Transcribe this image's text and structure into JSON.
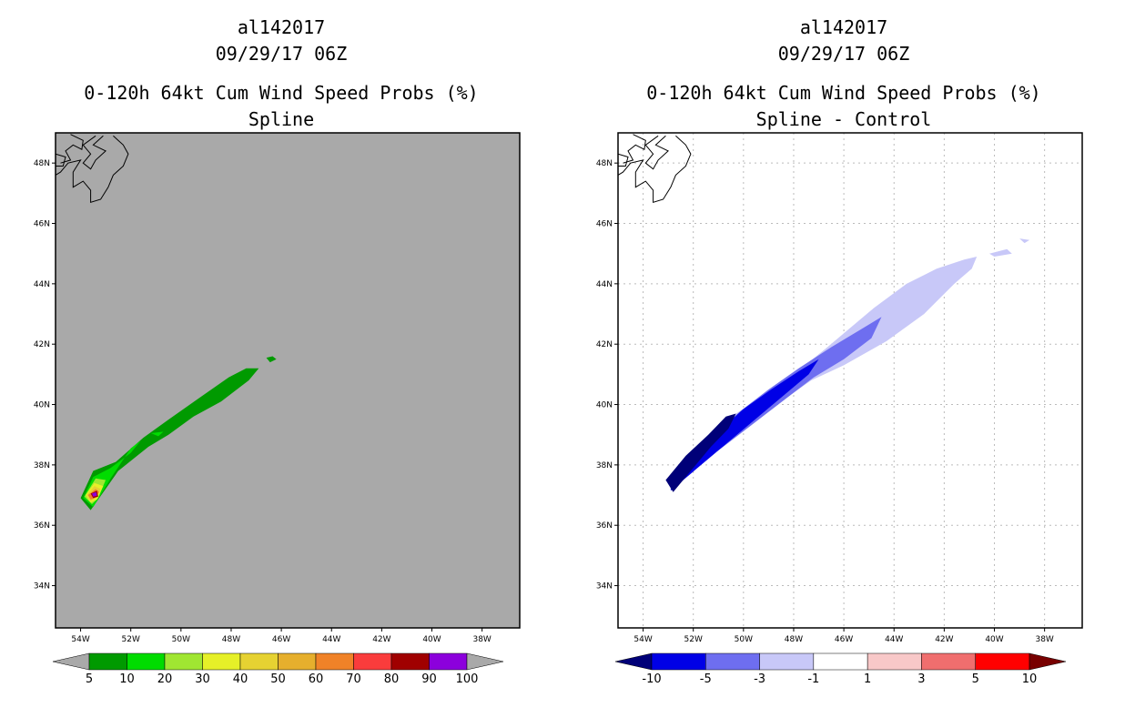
{
  "colors": {
    "background": "#ffffff",
    "left_plot_bg": "#a9a9a9",
    "coast": "#000000",
    "grid": "#bbbbbb"
  },
  "chart_data": [
    {
      "type": "heatmap",
      "title_lines": [
        "al142017",
        "09/29/17 06Z",
        "0-120h 64kt Cum Wind Speed Probs (%)",
        "Spline"
      ],
      "xlabel": "",
      "ylabel": "",
      "lon_range": [
        -55.0,
        -36.5
      ],
      "lat_range": [
        32.6,
        49.0
      ],
      "x_ticks": [
        "54W",
        "52W",
        "50W",
        "48W",
        "46W",
        "44W",
        "42W",
        "40W",
        "38W"
      ],
      "x_tick_values": [
        -54,
        -52,
        -50,
        -48,
        -46,
        -44,
        -42,
        -40,
        -38
      ],
      "y_ticks": [
        "48N",
        "46N",
        "44N",
        "42N",
        "40N",
        "38N",
        "36N",
        "34N"
      ],
      "y_tick_values": [
        48,
        46,
        44,
        42,
        40,
        38,
        36,
        34
      ],
      "grid": false,
      "colorbar": {
        "labels": [
          "5",
          "10",
          "20",
          "30",
          "40",
          "50",
          "60",
          "70",
          "80",
          "90",
          "100"
        ],
        "colors": [
          "#009a00",
          "#00dc00",
          "#a0e632",
          "#e6f028",
          "#e6d232",
          "#e6af2d",
          "#f08228",
          "#fa3c3c",
          "#a00000",
          "#8c00dc"
        ],
        "under_color": "#a9a9a9",
        "over_color": "#a9a9a9"
      },
      "contours": [
        {
          "level": "5",
          "color": "#009a00",
          "points": [
            [
              -54.0,
              36.9
            ],
            [
              -53.5,
              37.8
            ],
            [
              -52.6,
              38.1
            ],
            [
              -51.5,
              38.9
            ],
            [
              -50.5,
              39.5
            ],
            [
              -49.3,
              40.2
            ],
            [
              -48.1,
              40.9
            ],
            [
              -47.4,
              41.2
            ],
            [
              -46.9,
              41.2
            ],
            [
              -47.3,
              40.8
            ],
            [
              -48.4,
              40.1
            ],
            [
              -49.5,
              39.6
            ],
            [
              -50.5,
              39.0
            ],
            [
              -51.3,
              38.6
            ],
            [
              -52.5,
              37.8
            ],
            [
              -53.6,
              36.5
            ]
          ]
        },
        {
          "level": "5",
          "color": "#009a00",
          "points": [
            [
              -46.6,
              41.55
            ],
            [
              -46.35,
              41.6
            ],
            [
              -46.2,
              41.5
            ],
            [
              -46.45,
              41.4
            ]
          ]
        },
        {
          "level": "10",
          "color": "#00dc00",
          "points": [
            [
              -53.9,
              36.9
            ],
            [
              -53.5,
              37.6
            ],
            [
              -52.8,
              37.9
            ],
            [
              -52.0,
              38.4
            ],
            [
              -51.6,
              38.8
            ],
            [
              -52.0,
              38.55
            ],
            [
              -52.8,
              37.55
            ],
            [
              -53.5,
              36.6
            ]
          ]
        },
        {
          "level": "10",
          "color": "#00dc00",
          "points": [
            [
              -51.2,
              39.05
            ],
            [
              -50.7,
              39.1
            ],
            [
              -50.9,
              38.95
            ]
          ]
        },
        {
          "level": "20",
          "color": "#a0e632",
          "points": [
            [
              -53.85,
              36.95
            ],
            [
              -53.4,
              37.55
            ],
            [
              -53.0,
              37.5
            ],
            [
              -53.3,
              36.9
            ],
            [
              -53.55,
              36.7
            ]
          ]
        },
        {
          "level": "30",
          "color": "#e6f028",
          "points": [
            [
              -53.8,
              37.0
            ],
            [
              -53.45,
              37.4
            ],
            [
              -53.1,
              37.3
            ],
            [
              -53.35,
              36.85
            ],
            [
              -53.6,
              36.75
            ]
          ]
        },
        {
          "level": "40",
          "color": "#e6d232",
          "points": [
            [
              -53.75,
              37.0
            ],
            [
              -53.45,
              37.3
            ],
            [
              -53.2,
              37.2
            ],
            [
              -53.4,
              36.9
            ],
            [
              -53.6,
              36.8
            ]
          ]
        },
        {
          "level": "60",
          "color": "#f08228",
          "points": [
            [
              -53.7,
              37.0
            ],
            [
              -53.4,
              37.2
            ],
            [
              -53.25,
              37.1
            ],
            [
              -53.45,
              36.9
            ],
            [
              -53.6,
              36.85
            ]
          ]
        },
        {
          "level": "80",
          "color": "#a00000",
          "points": [
            [
              -53.6,
              37.05
            ],
            [
              -53.35,
              37.15
            ],
            [
              -53.3,
              36.95
            ],
            [
              -53.5,
              36.9
            ]
          ]
        },
        {
          "level": "90",
          "color": "#8c00dc",
          "points": [
            [
              -53.55,
              37.05
            ],
            [
              -53.38,
              37.1
            ],
            [
              -53.35,
              36.98
            ],
            [
              -53.5,
              36.95
            ]
          ]
        }
      ]
    },
    {
      "type": "heatmap",
      "title_lines": [
        "al142017",
        "09/29/17 06Z",
        "0-120h 64kt Cum Wind Speed Probs (%)",
        "Spline - Control"
      ],
      "xlabel": "",
      "ylabel": "",
      "lon_range": [
        -55.0,
        -36.5
      ],
      "lat_range": [
        32.6,
        49.0
      ],
      "x_ticks": [
        "54W",
        "52W",
        "50W",
        "48W",
        "46W",
        "44W",
        "42W",
        "40W",
        "38W"
      ],
      "x_tick_values": [
        -54,
        -52,
        -50,
        -48,
        -46,
        -44,
        -42,
        -40,
        -38
      ],
      "y_ticks": [
        "48N",
        "46N",
        "44N",
        "42N",
        "40N",
        "38N",
        "36N",
        "34N"
      ],
      "y_tick_values": [
        48,
        46,
        44,
        42,
        40,
        38,
        36,
        34
      ],
      "grid": true,
      "colorbar": {
        "labels": [
          "-10",
          "-5",
          "-3",
          "-1",
          "1",
          "3",
          "5",
          "10"
        ],
        "colors": [
          "#0000e6",
          "#6e6ef0",
          "#c8c8f8",
          "#ffffff",
          "#f8c8c8",
          "#f06e6e",
          "#ff0000"
        ],
        "under_color": "#000078",
        "over_color": "#780000"
      },
      "contours": [
        {
          "level": "-1",
          "color": "#c8c8f8",
          "points": [
            [
              -53.1,
              37.5
            ],
            [
              -52.2,
              38.2
            ],
            [
              -51.2,
              39.0
            ],
            [
              -50.3,
              39.7
            ],
            [
              -49.2,
              40.3
            ],
            [
              -48.0,
              41.0
            ],
            [
              -46.8,
              41.8
            ],
            [
              -45.8,
              42.5
            ],
            [
              -44.8,
              43.2
            ],
            [
              -43.5,
              44.0
            ],
            [
              -42.3,
              44.5
            ],
            [
              -41.2,
              44.8
            ],
            [
              -40.7,
              44.9
            ],
            [
              -40.9,
              44.5
            ],
            [
              -41.6,
              44.0
            ],
            [
              -42.8,
              43.0
            ],
            [
              -44.3,
              42.1
            ],
            [
              -46.0,
              41.3
            ],
            [
              -47.3,
              40.8
            ],
            [
              -48.5,
              40.1
            ],
            [
              -49.7,
              39.3
            ],
            [
              -50.8,
              38.6
            ],
            [
              -52.0,
              37.9
            ],
            [
              -52.8,
              37.2
            ]
          ]
        },
        {
          "level": "-1",
          "color": "#c8c8f8",
          "points": [
            [
              -40.2,
              45.0
            ],
            [
              -39.5,
              45.15
            ],
            [
              -39.3,
              45.0
            ],
            [
              -40.0,
              44.9
            ]
          ]
        },
        {
          "level": "-1",
          "color": "#c8c8f8",
          "points": [
            [
              -39.0,
              45.5
            ],
            [
              -38.6,
              45.45
            ],
            [
              -38.8,
              45.35
            ]
          ]
        },
        {
          "level": "-3",
          "color": "#6e6ef0",
          "points": [
            [
              -53.0,
              37.5
            ],
            [
              -52.1,
              38.3
            ],
            [
              -51.1,
              39.05
            ],
            [
              -50.1,
              39.8
            ],
            [
              -49.0,
              40.5
            ],
            [
              -47.8,
              41.2
            ],
            [
              -46.5,
              41.9
            ],
            [
              -45.3,
              42.5
            ],
            [
              -44.5,
              42.9
            ],
            [
              -44.9,
              42.2
            ],
            [
              -46.0,
              41.5
            ],
            [
              -47.2,
              40.9
            ],
            [
              -48.3,
              40.2
            ],
            [
              -49.4,
              39.5
            ],
            [
              -50.5,
              38.8
            ],
            [
              -51.6,
              38.1
            ],
            [
              -52.7,
              37.3
            ]
          ]
        },
        {
          "level": "-5",
          "color": "#0000e6",
          "points": [
            [
              -52.9,
              37.6
            ],
            [
              -52.0,
              38.3
            ],
            [
              -51.0,
              39.1
            ],
            [
              -50.0,
              39.85
            ],
            [
              -48.9,
              40.5
            ],
            [
              -47.8,
              41.1
            ],
            [
              -47.0,
              41.5
            ],
            [
              -47.4,
              41.0
            ],
            [
              -48.4,
              40.3
            ],
            [
              -49.4,
              39.6
            ],
            [
              -50.4,
              38.9
            ],
            [
              -51.4,
              38.2
            ],
            [
              -52.4,
              37.5
            ],
            [
              -52.9,
              37.15
            ]
          ]
        },
        {
          "level": "-10",
          "color": "#000078",
          "points": [
            [
              -53.1,
              37.5
            ],
            [
              -52.3,
              38.3
            ],
            [
              -51.4,
              39.0
            ],
            [
              -50.7,
              39.6
            ],
            [
              -50.3,
              39.7
            ],
            [
              -50.6,
              39.2
            ],
            [
              -51.3,
              38.6
            ],
            [
              -52.2,
              37.7
            ],
            [
              -52.8,
              37.1
            ]
          ]
        }
      ]
    }
  ]
}
